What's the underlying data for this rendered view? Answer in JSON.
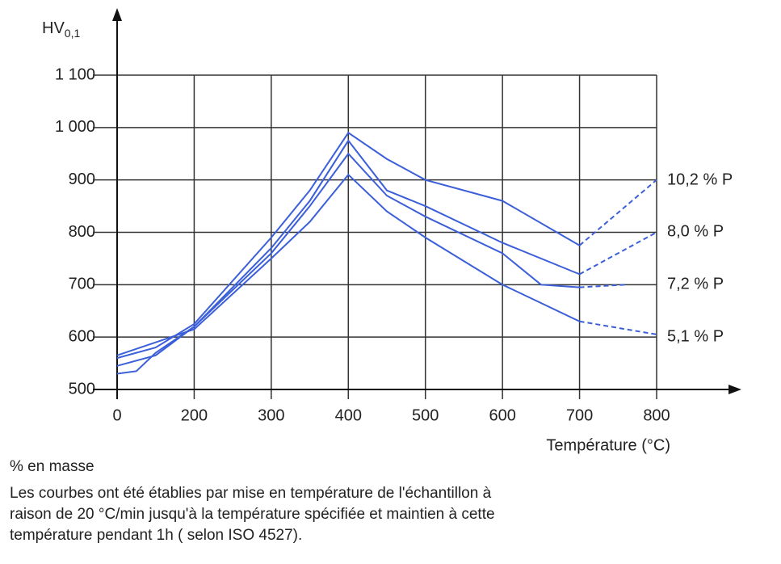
{
  "chart_data": {
    "type": "line",
    "y_label": "HV",
    "y_label_sub": "0,1",
    "x_label": "Température (°C)",
    "xlim": [
      0,
      800
    ],
    "xticks": [
      0,
      200,
      300,
      400,
      500,
      600,
      700,
      800
    ],
    "ylim": [
      500,
      1100
    ],
    "yticks": [
      500,
      600,
      700,
      800,
      900,
      {
        "value": 1000,
        "label": "1 000"
      },
      {
        "value": 1100,
        "label": "1 100"
      }
    ],
    "grid": true,
    "series": [
      {
        "name": "10,2 % P",
        "color": "#3b5fd9",
        "x": [
          0,
          100,
          200,
          300,
          350,
          400,
          450,
          500,
          600,
          700
        ],
        "values": [
          560,
          580,
          625,
          790,
          880,
          990,
          940,
          900,
          860,
          775
        ],
        "extension": {
          "x": [
            700,
            800
          ],
          "values": [
            775,
            900
          ]
        }
      },
      {
        "name": "8,0 % P",
        "color": "#3b5fd9",
        "x": [
          0,
          100,
          200,
          300,
          350,
          400,
          450,
          500,
          600,
          700
        ],
        "values": [
          545,
          565,
          620,
          770,
          860,
          975,
          880,
          850,
          780,
          720
        ],
        "extension": {
          "x": [
            700,
            800
          ],
          "values": [
            720,
            800
          ]
        }
      },
      {
        "name": "7,2 % P",
        "color": "#3b5fd9",
        "x": [
          0,
          50,
          100,
          200,
          300,
          350,
          400,
          450,
          500,
          600,
          650,
          700
        ],
        "values": [
          530,
          535,
          570,
          620,
          760,
          850,
          950,
          870,
          830,
          760,
          700,
          695
        ],
        "extension": {
          "x": [
            700,
            760
          ],
          "values": [
            695,
            700
          ]
        }
      },
      {
        "name": "5,1 % P",
        "color": "#3b5fd9",
        "x": [
          0,
          100,
          200,
          300,
          350,
          400,
          450,
          500,
          600,
          700
        ],
        "values": [
          565,
          590,
          615,
          750,
          820,
          910,
          840,
          790,
          700,
          630
        ],
        "extension": {
          "x": [
            700,
            800
          ],
          "values": [
            630,
            605
          ]
        }
      }
    ],
    "notes": [
      "% en masse",
      "Les courbes ont été établies par mise en température de l'échantillon à",
      "raison de 20 °C/min jusqu'à la température spécifiée et maintien à cette",
      "température pendant 1h ( selon ISO 4527)."
    ]
  }
}
